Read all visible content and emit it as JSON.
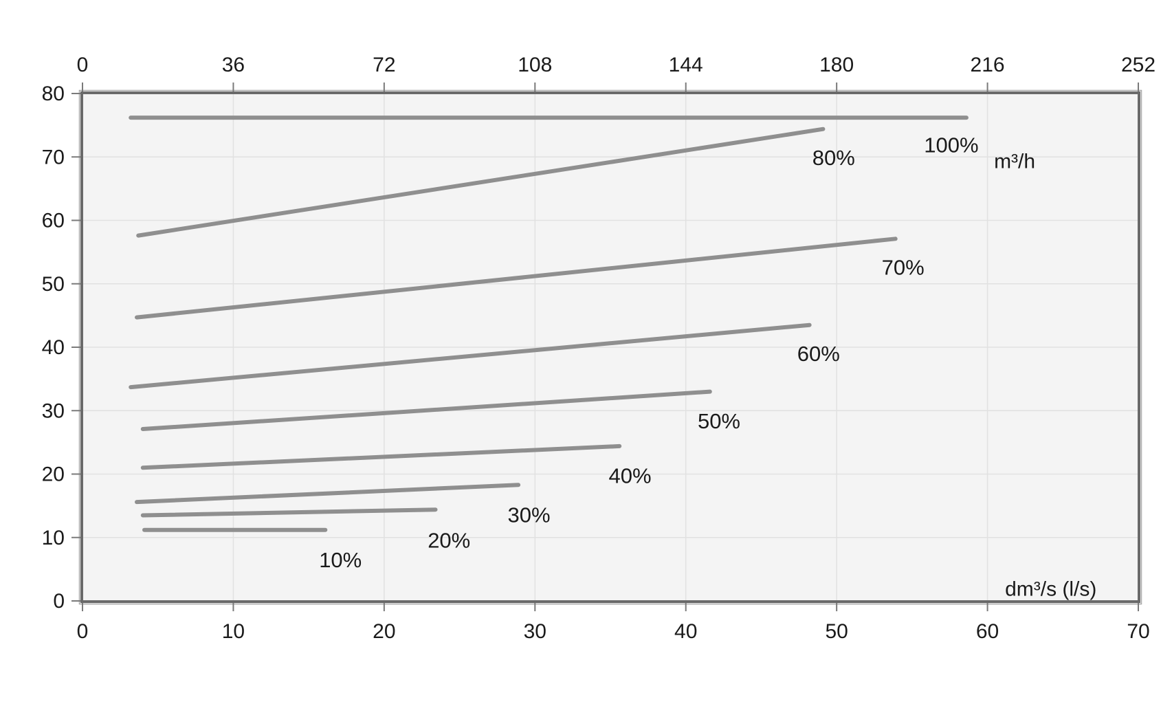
{
  "chart_data": {
    "type": "line",
    "title": "",
    "grid": true,
    "legend_position": "inline-labels",
    "x_axis_bottom": {
      "label": "dm³/s (l/s)",
      "min": 0,
      "max": 70,
      "ticks": [
        0,
        10,
        20,
        30,
        40,
        50,
        60,
        70
      ],
      "label_pos": [
        64.2,
        1.9
      ]
    },
    "x_axis_top": {
      "label": "m³/h",
      "min": 0,
      "max": 252,
      "ticks": [
        0,
        36,
        72,
        108,
        144,
        180,
        216,
        252
      ],
      "label_pos": [
        61.8,
        69.3
      ]
    },
    "y_axis": {
      "label": "",
      "min": 0,
      "max": 80,
      "ticks": [
        0,
        10,
        20,
        30,
        40,
        50,
        60,
        70,
        80
      ]
    },
    "series": [
      {
        "name": "100%",
        "points": [
          [
            3.2,
            76.2
          ],
          [
            58.6,
            76.2
          ]
        ],
        "label_pos": [
          57.6,
          71.8
        ]
      },
      {
        "name": "80%",
        "points": [
          [
            3.7,
            57.6
          ],
          [
            49.1,
            74.4
          ]
        ],
        "label_pos": [
          49.8,
          69.8
        ]
      },
      {
        "name": "70%",
        "points": [
          [
            3.6,
            44.7
          ],
          [
            53.9,
            57.1
          ]
        ],
        "label_pos": [
          54.4,
          52.5
        ]
      },
      {
        "name": "60%",
        "points": [
          [
            3.2,
            33.7
          ],
          [
            48.2,
            43.5
          ]
        ],
        "label_pos": [
          48.8,
          38.9
        ]
      },
      {
        "name": "50%",
        "points": [
          [
            4.0,
            27.1
          ],
          [
            41.6,
            33.0
          ]
        ],
        "label_pos": [
          42.2,
          28.3
        ]
      },
      {
        "name": "40%",
        "points": [
          [
            4.0,
            21.0
          ],
          [
            35.6,
            24.4
          ]
        ],
        "label_pos": [
          36.3,
          19.7
        ]
      },
      {
        "name": "30%",
        "points": [
          [
            3.6,
            15.6
          ],
          [
            28.9,
            18.3
          ]
        ],
        "label_pos": [
          29.6,
          13.5
        ]
      },
      {
        "name": "20%",
        "points": [
          [
            4.0,
            13.5
          ],
          [
            23.4,
            14.4
          ]
        ],
        "label_pos": [
          24.3,
          9.5
        ]
      },
      {
        "name": "10%",
        "points": [
          [
            4.1,
            11.2
          ],
          [
            16.1,
            11.2
          ]
        ],
        "label_pos": [
          17.1,
          6.4
        ]
      }
    ],
    "colors": {
      "line": "#8f8f8f",
      "grid": "#e1e1e1",
      "plot_background": "#f4f4f4",
      "border": "#6a6a6a",
      "border_outer": "#a8a8a8",
      "tick": "#7a7a7a",
      "text": "#1a1a1a"
    }
  }
}
